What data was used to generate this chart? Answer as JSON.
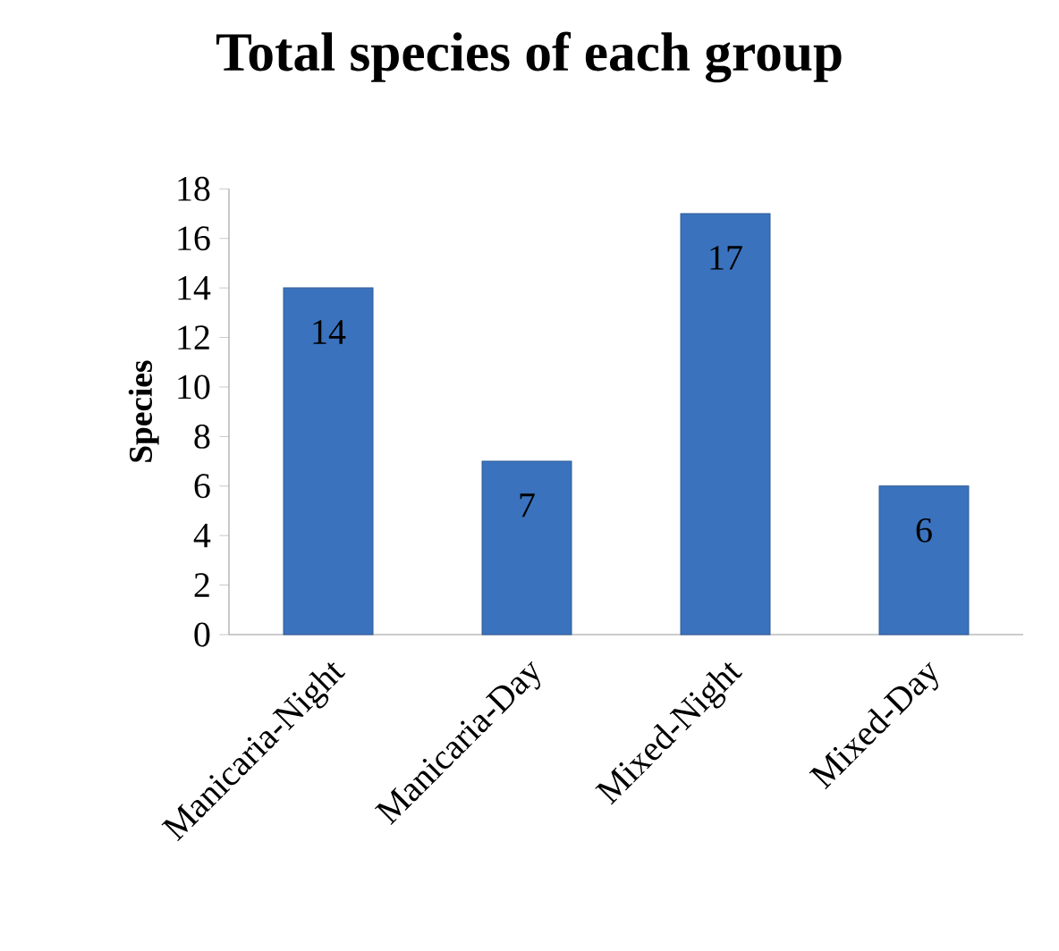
{
  "chart_data": {
    "type": "bar",
    "title": "Total species of each group",
    "ylabel": "Species",
    "categories": [
      "Manicaria-Night",
      "Manicaria-Day",
      "Mixed-Night",
      "Mixed-Day"
    ],
    "values": [
      14,
      7,
      17,
      6
    ],
    "color": "#3a72bd",
    "ylim": [
      0,
      18
    ],
    "yticks": [
      0,
      2,
      4,
      6,
      8,
      10,
      12,
      14,
      16,
      18
    ],
    "data_labels": true,
    "grid": false
  }
}
